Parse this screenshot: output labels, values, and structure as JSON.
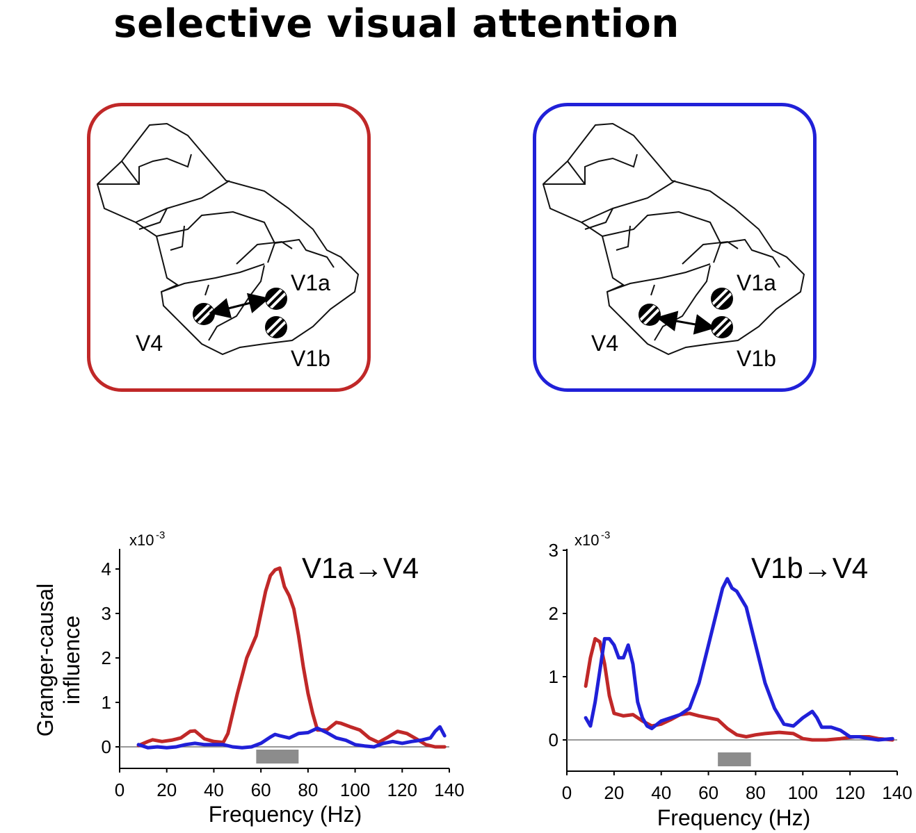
{
  "title": "selective visual attention",
  "colors": {
    "red": "#c02828",
    "blue": "#2020d8",
    "bar": "#8c8c8c"
  },
  "panels": [
    {
      "name": "attend-V1a",
      "border_color": "#c02828",
      "arrow_to": "V1a",
      "labels": {
        "v1a": "V1a",
        "v4": "V4",
        "v1b": "V1b"
      }
    },
    {
      "name": "attend-V1b",
      "border_color": "#2020d8",
      "arrow_to": "V1b",
      "labels": {
        "v1a": "V1a",
        "v4": "V4",
        "v1b": "V1b"
      }
    }
  ],
  "chart_data": [
    {
      "type": "line",
      "title": "V1a→V4",
      "xlabel": "Frequency (Hz)",
      "ylabel_line1": "Granger-causal",
      "ylabel_line2": "influence",
      "y_multiplier": "x10",
      "y_exponent": "-3",
      "xlim": [
        0,
        140
      ],
      "ylim": [
        -0.5,
        4.5
      ],
      "xticks": [
        "0",
        "20",
        "40",
        "60",
        "80",
        "100",
        "120",
        "140"
      ],
      "yticks": [
        "0",
        "1",
        "2",
        "3",
        "4"
      ],
      "zero_line": true,
      "highlight_band": [
        58,
        76
      ],
      "series": [
        {
          "color": "#c02828",
          "x": [
            8,
            12,
            14,
            18,
            22,
            26,
            30,
            32,
            36,
            40,
            44,
            46,
            50,
            54,
            58,
            62,
            64,
            66,
            68,
            70,
            72,
            74,
            76,
            78,
            80,
            82,
            84,
            88,
            92,
            94,
            98,
            102,
            106,
            110,
            114,
            118,
            122,
            126,
            130,
            134,
            138
          ],
          "y": [
            0.03,
            0.12,
            0.16,
            0.12,
            0.15,
            0.2,
            0.35,
            0.36,
            0.18,
            0.12,
            0.1,
            0.3,
            1.2,
            2.0,
            2.5,
            3.5,
            3.85,
            3.98,
            4.02,
            3.6,
            3.4,
            3.1,
            2.5,
            1.8,
            1.2,
            0.75,
            0.38,
            0.38,
            0.55,
            0.53,
            0.45,
            0.38,
            0.2,
            0.1,
            0.22,
            0.35,
            0.3,
            0.18,
            0.05,
            0.0,
            0.0
          ]
        },
        {
          "color": "#2020d8",
          "x": [
            8,
            12,
            16,
            20,
            24,
            28,
            32,
            36,
            40,
            44,
            48,
            52,
            56,
            60,
            64,
            66,
            68,
            72,
            76,
            80,
            84,
            88,
            92,
            96,
            100,
            104,
            108,
            112,
            116,
            120,
            124,
            128,
            132,
            134,
            136,
            138
          ],
          "y": [
            0.05,
            -0.02,
            0.0,
            -0.02,
            0.0,
            0.05,
            0.08,
            0.05,
            0.05,
            0.05,
            0.0,
            -0.02,
            0.0,
            0.08,
            0.22,
            0.28,
            0.25,
            0.2,
            0.3,
            0.32,
            0.42,
            0.32,
            0.2,
            0.15,
            0.05,
            0.02,
            0.0,
            0.08,
            0.12,
            0.08,
            0.12,
            0.15,
            0.2,
            0.35,
            0.45,
            0.25
          ]
        }
      ]
    },
    {
      "type": "line",
      "title": "V1b→V4",
      "xlabel": "Frequency (Hz)",
      "y_multiplier": "x10",
      "y_exponent": "-3",
      "xlim": [
        0,
        140
      ],
      "ylim": [
        -0.5,
        3
      ],
      "xticks": [
        "0",
        "20",
        "40",
        "60",
        "80",
        "100",
        "120",
        "140"
      ],
      "yticks": [
        "0",
        "1",
        "2",
        "3"
      ],
      "zero_line": true,
      "highlight_band": [
        64,
        78
      ],
      "series": [
        {
          "color": "#c02828",
          "x": [
            8,
            10,
            12,
            14,
            16,
            18,
            20,
            24,
            28,
            32,
            36,
            40,
            44,
            48,
            52,
            56,
            60,
            64,
            68,
            72,
            76,
            80,
            84,
            90,
            96,
            100,
            104,
            110,
            116,
            122,
            128,
            132,
            138
          ],
          "y": [
            0.85,
            1.3,
            1.6,
            1.55,
            1.2,
            0.7,
            0.42,
            0.38,
            0.4,
            0.3,
            0.22,
            0.25,
            0.32,
            0.4,
            0.42,
            0.38,
            0.35,
            0.32,
            0.18,
            0.08,
            0.05,
            0.08,
            0.1,
            0.12,
            0.1,
            0.02,
            0.0,
            0.0,
            0.02,
            0.05,
            0.05,
            0.02,
            0.0
          ]
        },
        {
          "color": "#2020d8",
          "x": [
            8,
            10,
            12,
            14,
            16,
            18,
            20,
            22,
            24,
            26,
            28,
            30,
            32,
            34,
            36,
            40,
            44,
            48,
            52,
            56,
            60,
            64,
            66,
            68,
            70,
            72,
            76,
            80,
            84,
            88,
            92,
            96,
            100,
            104,
            106,
            108,
            112,
            116,
            120,
            124,
            128,
            132,
            138
          ],
          "y": [
            0.35,
            0.22,
            0.6,
            1.1,
            1.6,
            1.6,
            1.5,
            1.3,
            1.3,
            1.5,
            1.2,
            0.6,
            0.35,
            0.22,
            0.18,
            0.3,
            0.35,
            0.4,
            0.5,
            0.9,
            1.5,
            2.1,
            2.4,
            2.55,
            2.4,
            2.35,
            2.1,
            1.5,
            0.9,
            0.5,
            0.25,
            0.22,
            0.35,
            0.45,
            0.35,
            0.2,
            0.2,
            0.15,
            0.05,
            0.05,
            0.02,
            0.0,
            0.02
          ]
        }
      ]
    }
  ]
}
